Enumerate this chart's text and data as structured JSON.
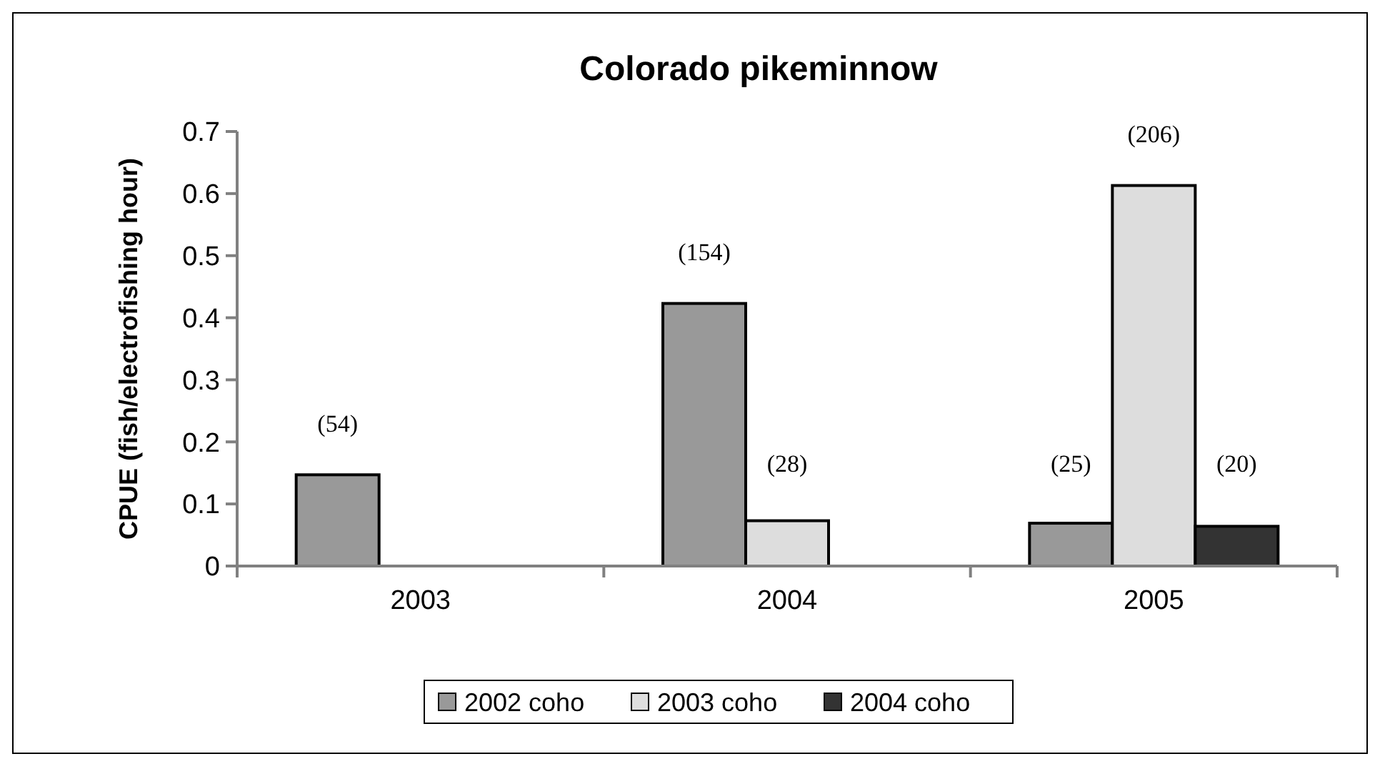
{
  "chart_data": {
    "type": "bar",
    "title": "Colorado pikeminnow",
    "ylabel": "CPUE (fish/electrofishing hour)",
    "categories": [
      "2003",
      "2004",
      "2005"
    ],
    "series": [
      {
        "name": "2002 coho",
        "color": "#999999",
        "values": [
          0.147,
          0.423,
          0.069
        ]
      },
      {
        "name": "2003 coho",
        "color": "#dddddd",
        "values": [
          null,
          0.073,
          0.613
        ]
      },
      {
        "name": "2004 coho",
        "color": "#333333",
        "values": [
          null,
          null,
          0.064
        ]
      }
    ],
    "annotations": [
      "(54)",
      "(154)",
      "(28)",
      "(25)",
      "(206)",
      "(20)"
    ],
    "ylim": [
      0,
      0.7
    ],
    "yticks": [
      0,
      0.1,
      0.2,
      0.3,
      0.4,
      0.5,
      0.6,
      0.7
    ],
    "grid": false,
    "legend": "bottom"
  }
}
